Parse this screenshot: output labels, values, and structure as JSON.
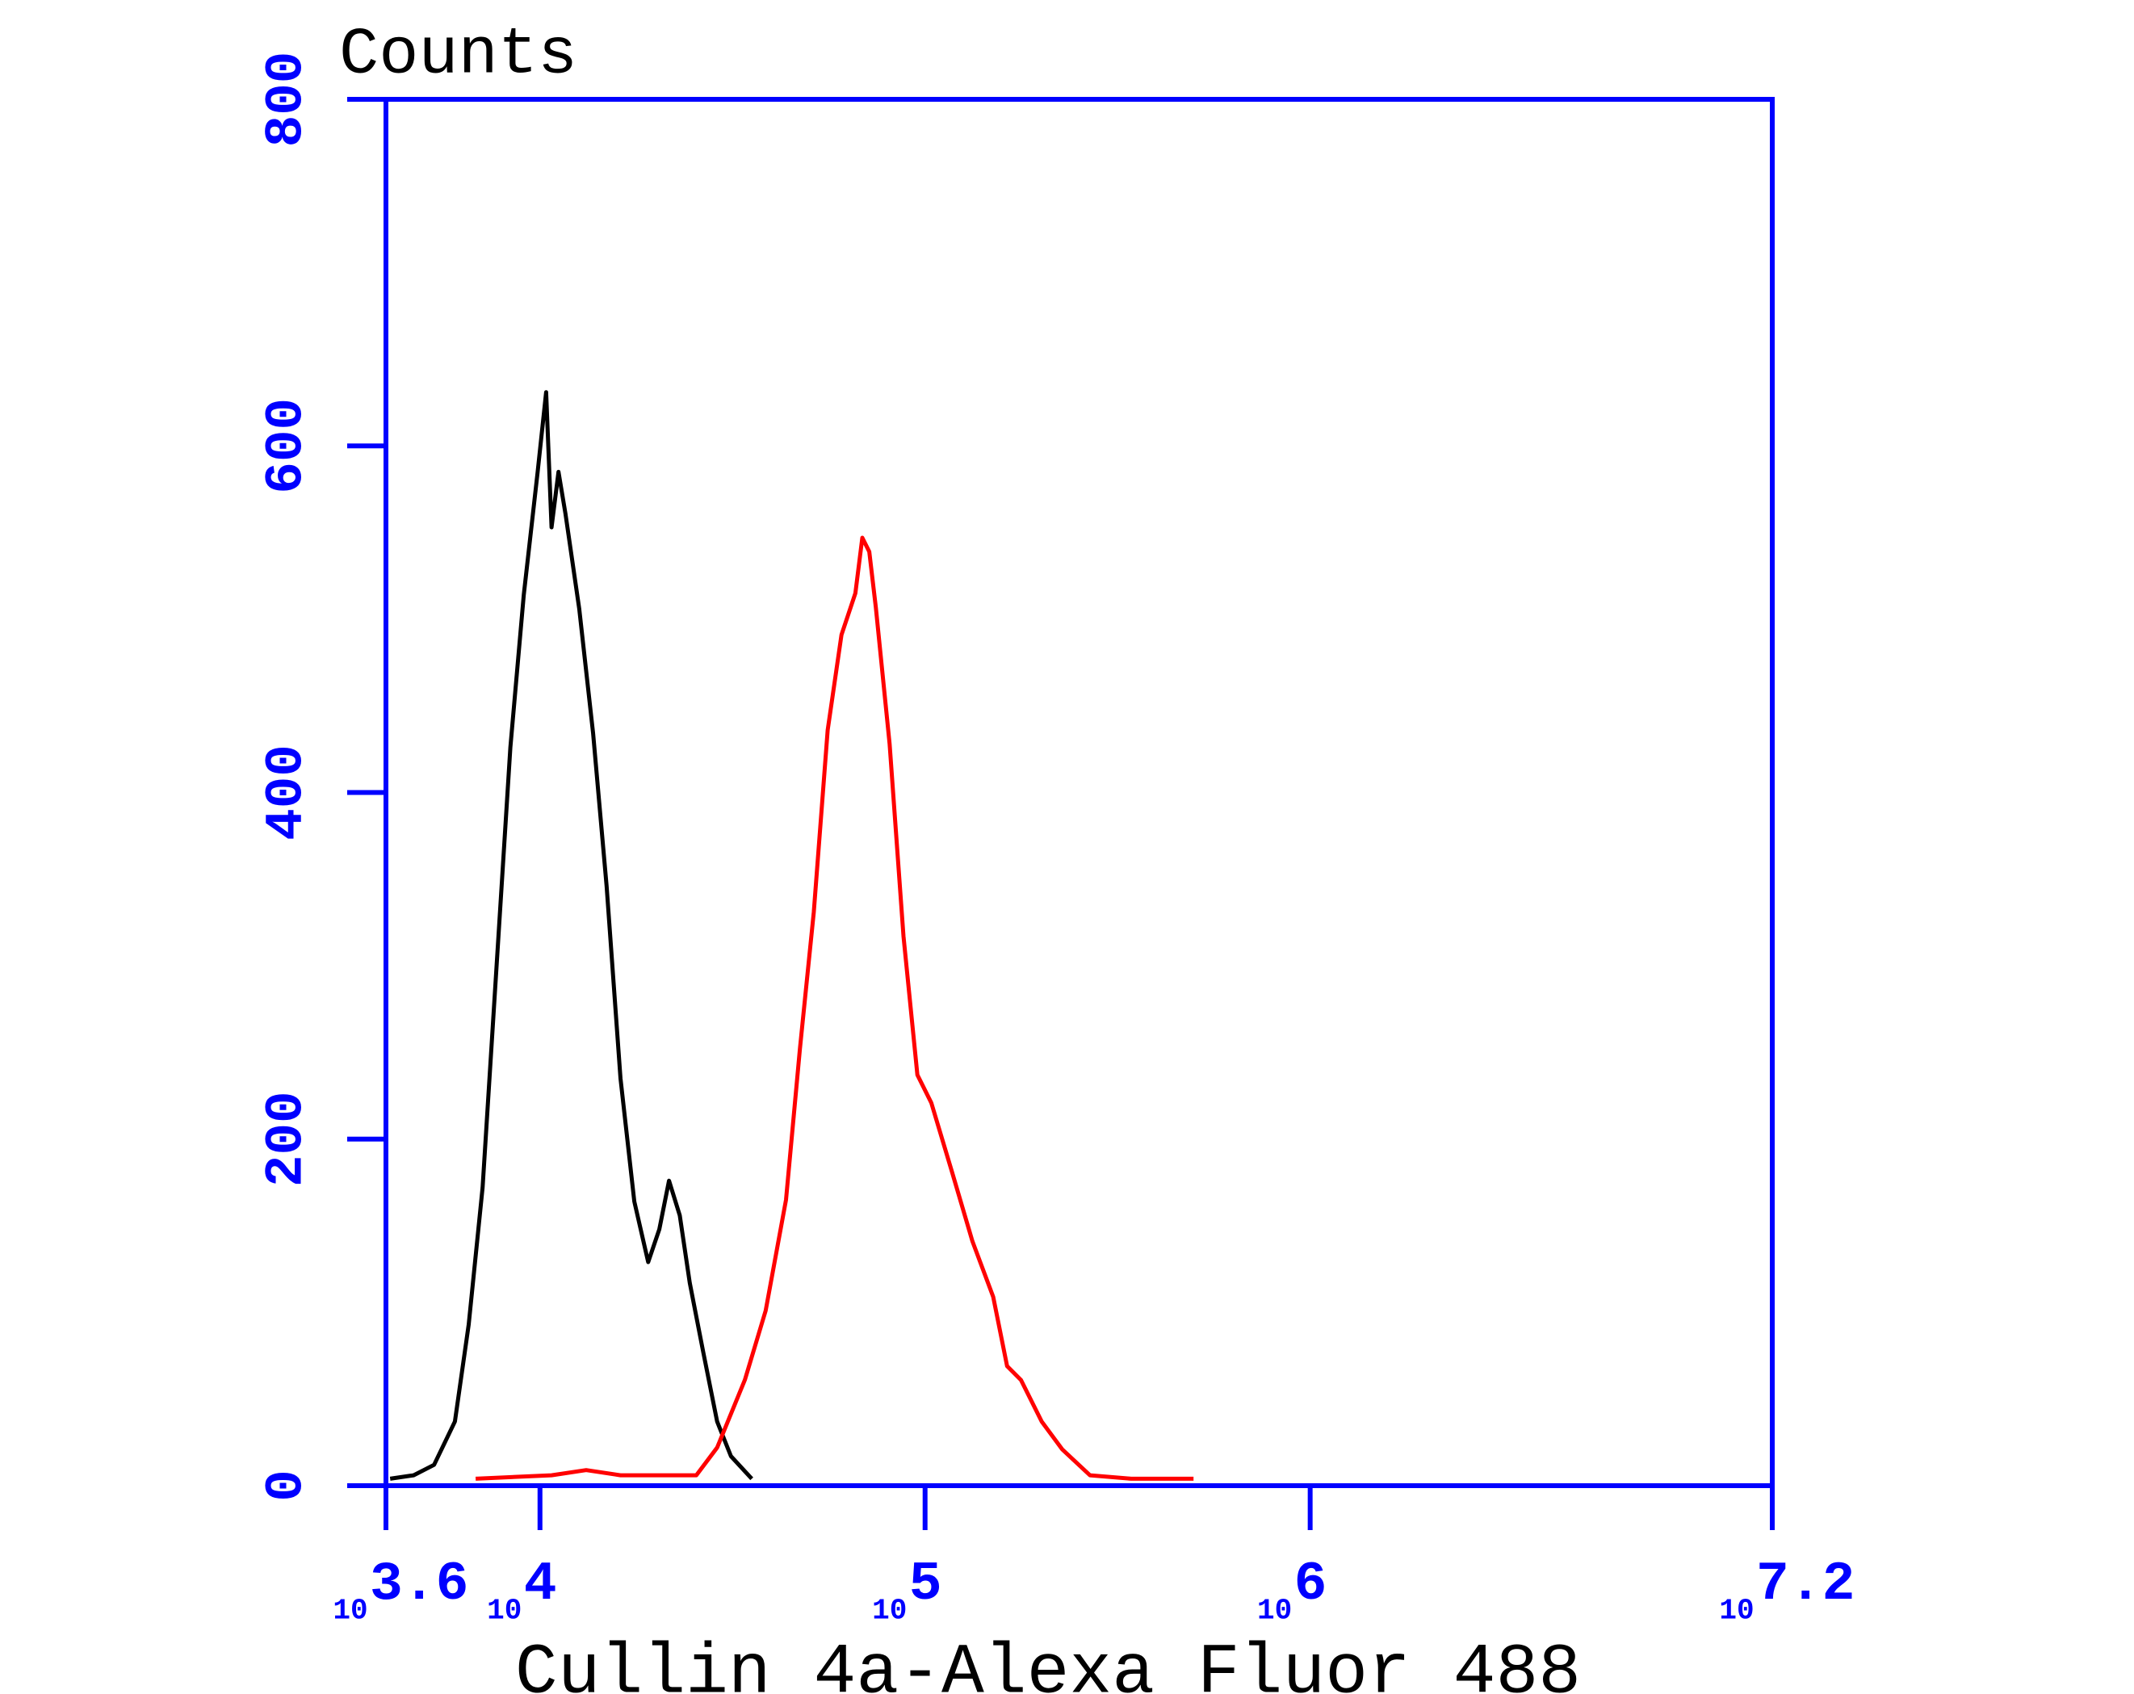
{
  "chart_data": {
    "type": "line",
    "y_axis_label": "Counts",
    "x_axis_label": "Cullin 4a-Alexa Fluor 488",
    "x_scale": "log",
    "x_tick_base": "10",
    "xlim": [
      3.6,
      7.2
    ],
    "xticks": [
      {
        "value": 3.6,
        "label": "3.6"
      },
      {
        "value": 4,
        "label": "4"
      },
      {
        "value": 5,
        "label": "5"
      },
      {
        "value": 6,
        "label": "6"
      },
      {
        "value": 7.2,
        "label": "7.2"
      }
    ],
    "ylim": [
      0,
      800
    ],
    "yticks": [
      0,
      200,
      400,
      600,
      800
    ],
    "axis_color": "#0000ff",
    "series": [
      {
        "color": "#000000",
        "x": [
          3.611,
          3.672,
          3.725,
          3.779,
          3.815,
          3.851,
          3.887,
          3.923,
          3.958,
          3.994,
          4.016,
          4.03,
          4.048,
          4.066,
          4.102,
          4.138,
          4.173,
          4.209,
          4.245,
          4.281,
          4.31,
          4.335,
          4.363,
          4.389,
          4.424,
          4.46,
          4.496,
          4.55
        ],
        "values": [
          4,
          6,
          12,
          37,
          93,
          172,
          299,
          426,
          514,
          585,
          631,
          553,
          585,
          561,
          506,
          434,
          346,
          235,
          164,
          129,
          148,
          176,
          156,
          117,
          77,
          37,
          17,
          4
        ]
      },
      {
        "color": "#ff0000",
        "x": [
          3.833,
          4.03,
          4.12,
          4.209,
          4.406,
          4.46,
          4.532,
          4.586,
          4.639,
          4.675,
          4.711,
          4.747,
          4.783,
          4.819,
          4.837,
          4.855,
          4.872,
          4.908,
          4.944,
          4.98,
          5.016,
          5.07,
          5.123,
          5.177,
          5.213,
          5.249,
          5.303,
          5.356,
          5.428,
          5.535,
          5.643,
          5.697
        ],
        "values": [
          4,
          6,
          9,
          6,
          6,
          22,
          61,
          101,
          165,
          252,
          331,
          436,
          491,
          515,
          547,
          539,
          507,
          428,
          317,
          237,
          221,
          181,
          141,
          109,
          69,
          61,
          37,
          21,
          6,
          4,
          4,
          4
        ]
      }
    ]
  }
}
